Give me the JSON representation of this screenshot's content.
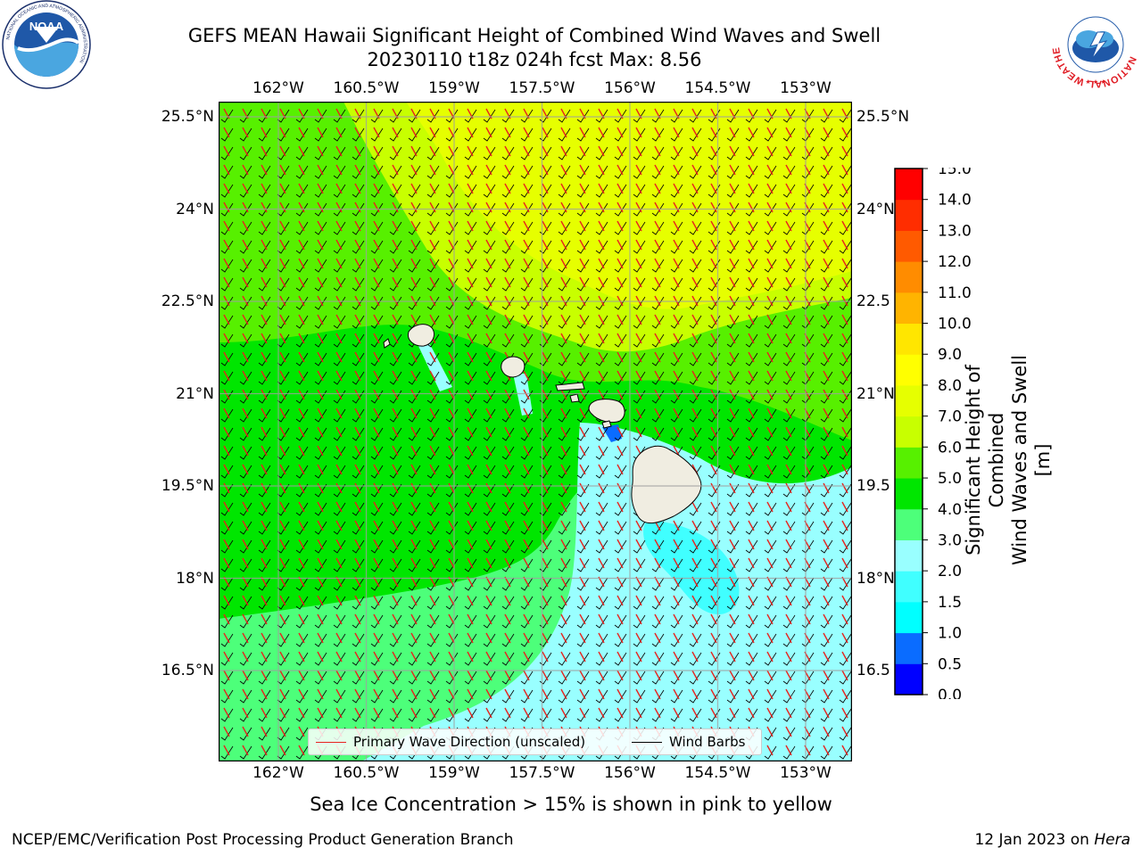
{
  "title": {
    "line1": "GEFS MEAN Hawaii Significant Height of Combined Wind Waves and Swell",
    "line2": "20230110 t18z 024h fcst   Max: 8.56"
  },
  "logos": {
    "noaa": {
      "text": "NOAA",
      "ring_text": "NATIONAL OCEANIC AND ATMOSPHERIC ADMINISTRATION",
      "ring_text_bottom": "U.S. DEPARTMENT OF COMMERCE"
    },
    "nws": {
      "ring_text": "NATIONAL WEATHER SERVICE"
    }
  },
  "map": {
    "lon_ticks": [
      "162°W",
      "160.5°W",
      "159°W",
      "157.5°W",
      "156°W",
      "154.5°W",
      "153°W"
    ],
    "lat_ticks": [
      "25.5°N",
      "24°N",
      "22.5°N",
      "21°N",
      "19.5°N",
      "18°N",
      "16.5°N"
    ],
    "lat_ticks_right": [
      "25.5°N",
      "24°N",
      "22.5",
      "21°N",
      "19.5",
      "18°N",
      "16.5"
    ],
    "field": "Significant Height of Combined Wind Waves and Swell",
    "max_value": 8.56,
    "wave_direction_color": "#e8231e",
    "barb_color": "#000000",
    "land_color": "#f0ede1"
  },
  "legend": {
    "primary_wave": "Primary Wave Direction (unscaled)",
    "wind_barbs": "Wind Barbs"
  },
  "colorbar": {
    "title_line1": "Significant Height of Combined",
    "title_line2": "Wind Waves and Swell [m]",
    "ticks": [
      "0.0",
      "0.5",
      "1.0",
      "1.5",
      "2.0",
      "3.0",
      "4.0",
      "5.0",
      "6.0",
      "7.0",
      "8.0",
      "9.0",
      "10.0",
      "11.0",
      "12.0",
      "13.0",
      "14.0",
      "15.0"
    ],
    "colors": [
      "#0000ff",
      "#0a6cff",
      "#00ffff",
      "#40ffff",
      "#99ffff",
      "#4dff7a",
      "#00e600",
      "#57f000",
      "#c8ff00",
      "#e6ff00",
      "#ffff00",
      "#ffe600",
      "#ffb400",
      "#ff8c00",
      "#ff5a00",
      "#ff2d00",
      "#ff0000"
    ]
  },
  "footer": {
    "sea_ice": "Sea Ice Concentration > 15% is shown in pink to yellow",
    "left": "NCEP/EMC/Verification Post Processing Product Generation Branch",
    "right_date": "12 Jan 2023 on ",
    "right_host": "Hera"
  }
}
